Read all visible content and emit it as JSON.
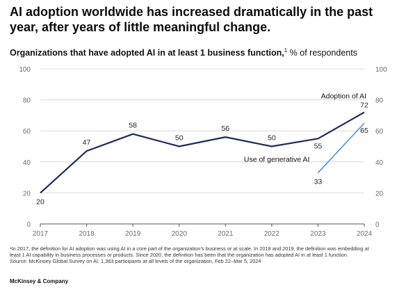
{
  "headline": "AI adoption worldwide has increased dramatically in the past year, after years of little meaningful change.",
  "subtitle": {
    "bold": "Organizations that have adopted AI in at least 1 business function,",
    "sup": "1",
    "rest": " % of respondents"
  },
  "footnotes": [
    "¹In 2017, the definition for AI adoption was using AI in a core part of the organization's business or at scale. In 2018 and 2019, the definition was embedding at",
    "least 1 AI capability in business processes or products. Since 2020, the definition has been that the organization has adopted AI in at least 1 function.",
    "Source: McKinsey Global Survey on AI, 1,363 participants at all levels of the organization, Feb 22–Mar 5, 2024"
  ],
  "brand": "McKinsey & Company",
  "colors": {
    "adoption": "#1f2a5c",
    "generative": "#4a90e2",
    "grid": "#d9d9d9",
    "axis": "#555555"
  },
  "chart_data": {
    "type": "line",
    "title": "Organizations that have adopted AI in at least 1 business function, % of respondents",
    "categories": [
      "2017",
      "2018",
      "2019",
      "2020",
      "2021",
      "2022",
      "2023",
      "2024"
    ],
    "ylim": [
      0,
      100
    ],
    "yticks": [
      "0",
      "20",
      "40",
      "60",
      "80",
      "100"
    ],
    "grid": true,
    "series": [
      {
        "name": "Adoption of AI",
        "values": [
          20,
          47,
          58,
          50,
          56,
          50,
          55,
          72
        ],
        "labels": [
          "20",
          "47",
          "58",
          "50",
          "56",
          "50",
          "55",
          "72"
        ]
      },
      {
        "name": "Use of generative AI",
        "x": [
          "2023",
          "2024"
        ],
        "values": [
          33,
          65
        ],
        "labels": [
          "33",
          "65"
        ]
      }
    ]
  }
}
